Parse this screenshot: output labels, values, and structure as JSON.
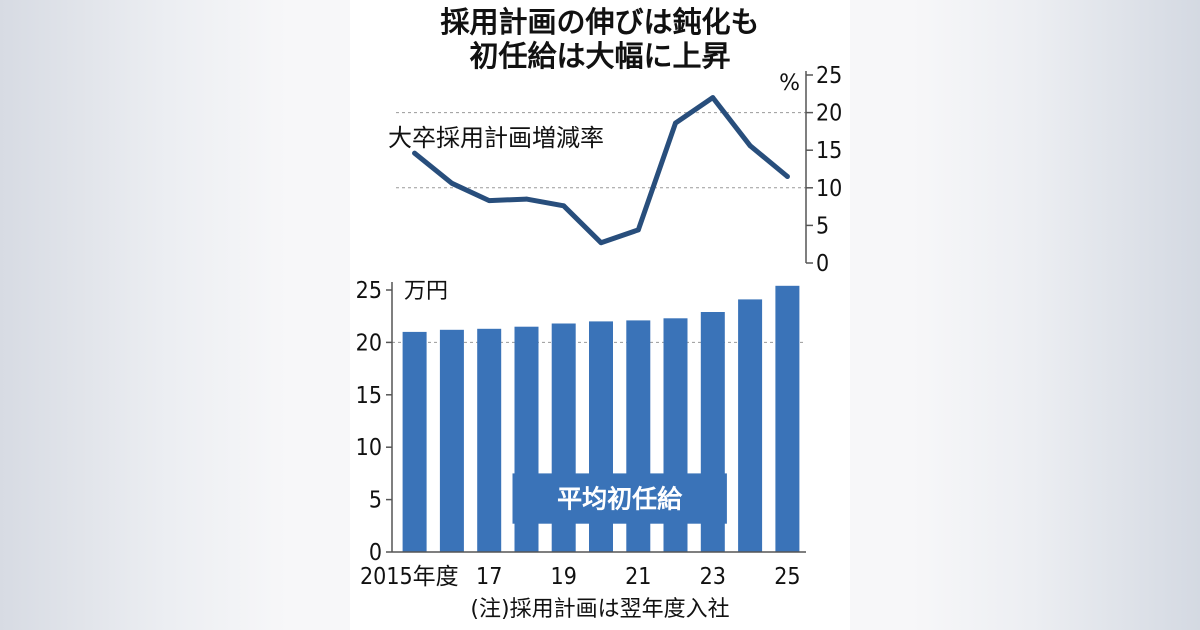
{
  "title": {
    "line1": "採用計画の伸びは鈍化も",
    "line2": "初任給は大幅に上昇"
  },
  "note": "(注)採用計画は翌年度入社",
  "colors": {
    "line": "#284e7c",
    "bar": "#3a73b8",
    "axis": "#555555",
    "gridline": "#9a9a9a",
    "background": "#ffffff"
  },
  "chart_data": [
    {
      "type": "line",
      "series_label": "大卒採用計画増減率",
      "unit": "%",
      "axis_side": "right",
      "ylim": [
        0,
        25
      ],
      "yticks": [
        0,
        5,
        10,
        15,
        20,
        25
      ],
      "gridlines": [
        10,
        20
      ],
      "x": [
        2015,
        2016,
        2017,
        2018,
        2019,
        2020,
        2021,
        2022,
        2023,
        2024,
        2025
      ],
      "values": [
        14.6,
        10.6,
        8.3,
        8.5,
        7.6,
        2.7,
        4.4,
        18.6,
        22.0,
        15.6,
        11.5
      ]
    },
    {
      "type": "bar",
      "series_label": "平均初任給",
      "unit": "万円",
      "axis_side": "left",
      "ylim": [
        0,
        25
      ],
      "yticks": [
        0,
        5,
        10,
        15,
        20,
        25
      ],
      "gridlines": [
        20
      ],
      "x": [
        2015,
        2016,
        2017,
        2018,
        2019,
        2020,
        2021,
        2022,
        2023,
        2024,
        2025
      ],
      "values": [
        21.0,
        21.2,
        21.3,
        21.5,
        21.8,
        22.0,
        22.1,
        22.3,
        22.9,
        24.1,
        25.4
      ]
    }
  ],
  "x_tick_labels": [
    {
      "x": 2015,
      "label": "2015年度"
    },
    {
      "x": 2017,
      "label": "17"
    },
    {
      "x": 2019,
      "label": "19"
    },
    {
      "x": 2021,
      "label": "21"
    },
    {
      "x": 2023,
      "label": "23"
    },
    {
      "x": 2025,
      "label": "25"
    }
  ]
}
